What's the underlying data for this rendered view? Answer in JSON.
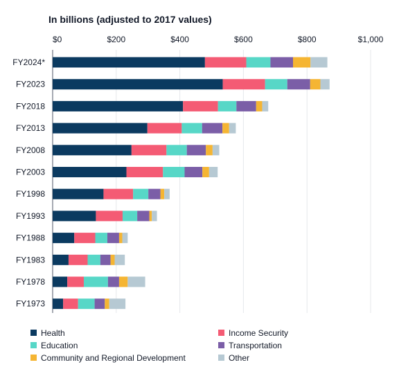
{
  "chart_data": {
    "type": "bar",
    "orientation": "horizontal",
    "stacked": true,
    "title": "In billions (adjusted to 2017 values)",
    "xlim": [
      0,
      1000
    ],
    "x_ticks": [
      "$0",
      "$200",
      "$400",
      "$600",
      "$800",
      "$1,000"
    ],
    "x_tick_values": [
      0,
      200,
      400,
      600,
      800,
      1000
    ],
    "grid": "vertical",
    "legend_position": "bottom",
    "categories": [
      "FY2024*",
      "FY2023",
      "FY2018",
      "FY2013",
      "FY2008",
      "FY2003",
      "FY1998",
      "FY1993",
      "FY1988",
      "FY1983",
      "FY1978",
      "FY1973"
    ],
    "series": [
      {
        "name": "Health",
        "color": "#0b3a60",
        "values": [
          479,
          535,
          410,
          298,
          248,
          232,
          160,
          136,
          68,
          50,
          46,
          33
        ]
      },
      {
        "name": "Income Security",
        "color": "#f45b74",
        "values": [
          130,
          133,
          110,
          108,
          110,
          115,
          93,
          84,
          66,
          60,
          52,
          47
        ]
      },
      {
        "name": "Education",
        "color": "#57d7c7",
        "values": [
          76,
          70,
          58,
          64,
          64,
          68,
          48,
          46,
          38,
          40,
          76,
          52
        ]
      },
      {
        "name": "Transportation",
        "color": "#7b5ea7",
        "values": [
          71,
          72,
          62,
          64,
          60,
          56,
          38,
          38,
          37,
          32,
          35,
          32
        ]
      },
      {
        "name": "Community and Regional Development",
        "color": "#f5b533",
        "values": [
          55,
          32,
          19,
          21,
          21,
          21,
          12,
          8,
          10,
          13,
          27,
          14
        ]
      },
      {
        "name": "Other",
        "color": "#b6c9d3",
        "values": [
          53,
          29,
          19,
          21,
          21,
          27,
          17,
          16,
          17,
          32,
          55,
          51
        ]
      }
    ]
  }
}
